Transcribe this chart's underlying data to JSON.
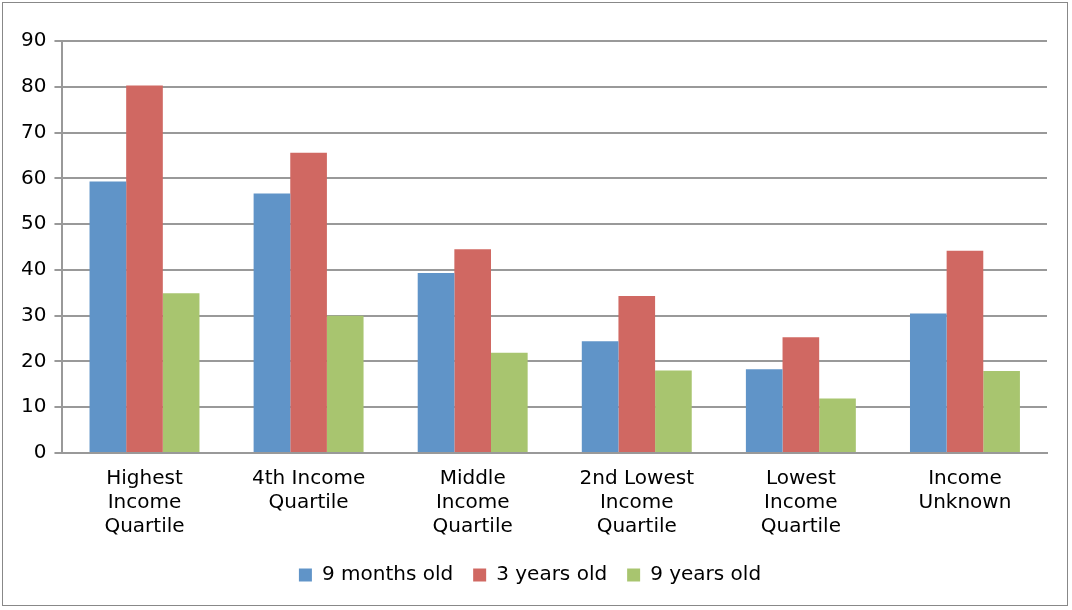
{
  "chart_data": {
    "type": "bar",
    "categories": [
      "Highest Income Quartile",
      "4th Income Quartile",
      "Middle Income Quartile",
      "2nd Lowest Income Quartile",
      "Lowest Income Quartile",
      "Income Unknown"
    ],
    "series": [
      {
        "name": "9 months old",
        "color": "#6094c8",
        "values": [
          59.3,
          56.7,
          39.3,
          24.4,
          18.3,
          30.5
        ]
      },
      {
        "name": "3 years old",
        "color": "#d06862",
        "values": [
          80.3,
          65.6,
          44.5,
          34.3,
          25.3,
          44.2
        ]
      },
      {
        "name": "9 years old",
        "color": "#a8c56f",
        "values": [
          34.9,
          30.0,
          21.9,
          18.0,
          11.9,
          17.9
        ]
      }
    ],
    "ylim": [
      0,
      90
    ],
    "yticks": [
      0,
      10,
      20,
      30,
      40,
      50,
      60,
      70,
      80,
      90
    ],
    "grid": "y",
    "legend": "bottom"
  }
}
